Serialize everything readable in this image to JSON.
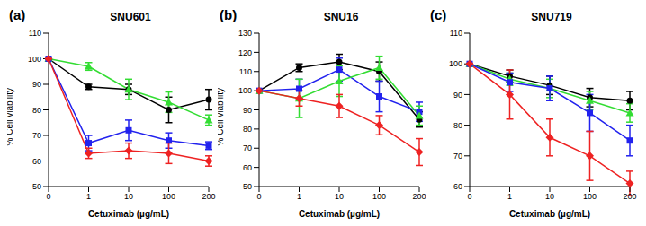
{
  "chart_data": [
    {
      "type": "line",
      "annotation": "(a)",
      "title": "SNU601",
      "x_label": "Cetuximab (µg/mL)",
      "y_label": "% Cell viability",
      "categories": [
        "0",
        "1",
        "10",
        "100",
        "200"
      ],
      "ylim": [
        50,
        110
      ],
      "yticks": [
        50,
        60,
        70,
        80,
        90,
        100,
        110
      ],
      "grid": false,
      "series": [
        {
          "color": "#000000",
          "marker": "circle",
          "values": [
            100,
            89,
            88,
            80,
            84
          ],
          "errors": [
            0,
            1,
            2,
            5,
            4
          ]
        },
        {
          "color": "#33dd33",
          "marker": "triangle",
          "values": [
            100,
            97,
            88,
            83,
            76
          ],
          "errors": [
            0,
            1.5,
            4,
            4,
            2
          ]
        },
        {
          "color": "#2222ee",
          "marker": "square",
          "values": [
            100,
            67,
            72,
            68,
            66
          ],
          "errors": [
            0,
            3,
            4,
            3,
            1.5
          ]
        },
        {
          "color": "#ee2222",
          "marker": "diamond",
          "values": [
            100,
            63,
            64,
            63,
            60
          ],
          "errors": [
            0,
            2,
            3,
            4,
            2
          ]
        }
      ]
    },
    {
      "type": "line",
      "annotation": "(b)",
      "title": "SNU16",
      "x_label": "Cetuximab (µg/mL)",
      "y_label": "% Cell viability",
      "categories": [
        "0",
        "1",
        "10",
        "100",
        "200"
      ],
      "ylim": [
        50,
        130
      ],
      "yticks": [
        50,
        60,
        70,
        80,
        90,
        100,
        110,
        120,
        130
      ],
      "grid": false,
      "series": [
        {
          "color": "#000000",
          "marker": "circle",
          "values": [
            100,
            112,
            115,
            110,
            85
          ],
          "errors": [
            0,
            2,
            4,
            5,
            4
          ]
        },
        {
          "color": "#2222ee",
          "marker": "square",
          "values": [
            100,
            101,
            111,
            97,
            89
          ],
          "errors": [
            0,
            5,
            6,
            8,
            5
          ]
        },
        {
          "color": "#33dd33",
          "marker": "triangle",
          "values": [
            100,
            96,
            105,
            112,
            87
          ],
          "errors": [
            0,
            10,
            8,
            6,
            5
          ]
        },
        {
          "color": "#ee2222",
          "marker": "diamond",
          "values": [
            100,
            96,
            92,
            82,
            68
          ],
          "errors": [
            0,
            4,
            6,
            5,
            7
          ]
        }
      ]
    },
    {
      "type": "line",
      "annotation": "(c)",
      "title": "SNU719",
      "x_label": "Cetuximab (µg/mL)",
      "categories": [
        "0",
        "1",
        "10",
        "100",
        "200"
      ],
      "ylim": [
        60,
        110
      ],
      "yticks": [
        60,
        70,
        80,
        90,
        100,
        110
      ],
      "grid": false,
      "series": [
        {
          "color": "#000000",
          "marker": "circle",
          "values": [
            100,
            96,
            93,
            89,
            88
          ],
          "errors": [
            0,
            2,
            3,
            3,
            3
          ]
        },
        {
          "color": "#33dd33",
          "marker": "triangle",
          "values": [
            100,
            95,
            92,
            88,
            84
          ],
          "errors": [
            0,
            2,
            3,
            3,
            3
          ]
        },
        {
          "color": "#2222ee",
          "marker": "square",
          "values": [
            100,
            94,
            92,
            84,
            75
          ],
          "errors": [
            0,
            3,
            4,
            6,
            5
          ]
        },
        {
          "color": "#ee2222",
          "marker": "diamond",
          "values": [
            100,
            90,
            76,
            70,
            61
          ],
          "errors": [
            0,
            8,
            6,
            8,
            4
          ]
        }
      ]
    }
  ]
}
